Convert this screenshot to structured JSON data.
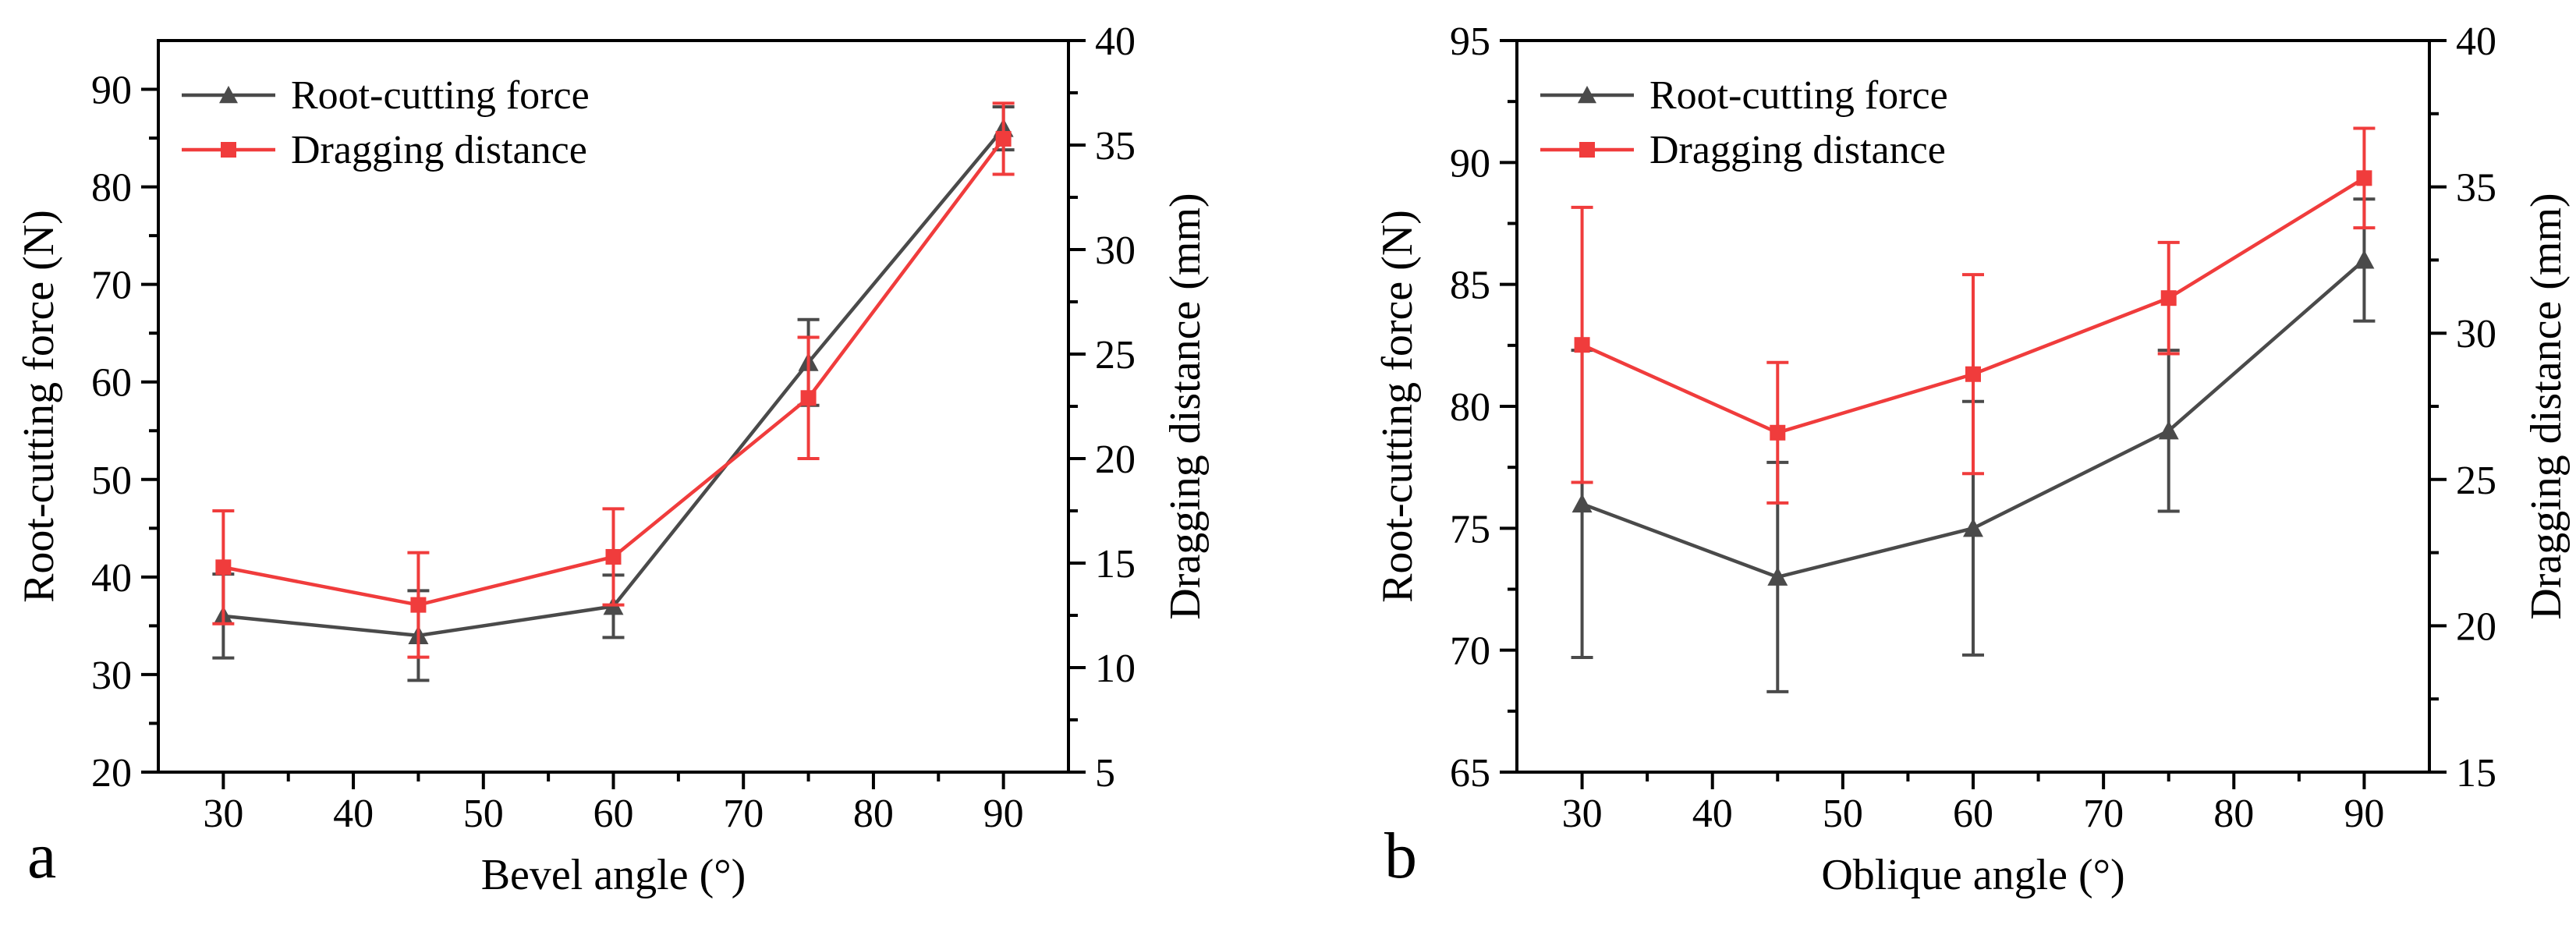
{
  "chart_data": [
    {
      "type": "line",
      "panel_label": "a",
      "xlabel": "Bevel angle (°)",
      "ylabel_left": "Root-cutting force (N)",
      "ylabel_right": "Dragging distance (mm)",
      "xlim": [
        25,
        95
      ],
      "ylim_left": [
        20,
        95
      ],
      "ylim_right": [
        5,
        40
      ],
      "xticks": [
        30,
        40,
        50,
        60,
        70,
        80,
        90
      ],
      "yticks_left": [
        20,
        30,
        40,
        50,
        60,
        70,
        80,
        90
      ],
      "yticks_right": [
        5,
        10,
        15,
        20,
        25,
        30,
        35,
        40
      ],
      "series": [
        {
          "name": "Root-cutting force",
          "axis": "left",
          "color": "#4a4a4a",
          "marker": "triangle",
          "x": [
            30,
            45,
            60,
            75,
            90
          ],
          "y": [
            36,
            34,
            37,
            62,
            86
          ],
          "error": [
            4.3,
            4.6,
            3.2,
            4.4,
            2.2
          ]
        },
        {
          "name": "Dragging distance",
          "axis": "right",
          "color": "#f03c3c",
          "marker": "square",
          "x": [
            30,
            45,
            60,
            75,
            90
          ],
          "y": [
            14.8,
            13.0,
            15.3,
            22.9,
            35.3
          ],
          "error": [
            2.7,
            2.5,
            2.3,
            2.9,
            1.7
          ]
        }
      ]
    },
    {
      "type": "line",
      "panel_label": "b",
      "xlabel": "Oblique angle (°)",
      "ylabel_left": "Root-cutting force (N)",
      "ylabel_right": "Dragging distance (mm)",
      "xlim": [
        25,
        95
      ],
      "ylim_left": [
        65,
        95
      ],
      "ylim_right": [
        15,
        40
      ],
      "xticks": [
        30,
        40,
        50,
        60,
        70,
        80,
        90
      ],
      "yticks_left": [
        65,
        70,
        75,
        80,
        85,
        90,
        95
      ],
      "yticks_right": [
        15,
        20,
        25,
        30,
        35,
        40
      ],
      "series": [
        {
          "name": "Root-cutting force",
          "axis": "left",
          "color": "#4a4a4a",
          "marker": "triangle",
          "x": [
            30,
            45,
            60,
            75,
            90
          ],
          "y": [
            76,
            73,
            75,
            79,
            86
          ],
          "error": [
            6.3,
            4.7,
            5.2,
            3.3,
            2.5
          ]
        },
        {
          "name": "Dragging distance",
          "axis": "right",
          "color": "#f03c3c",
          "marker": "square",
          "x": [
            30,
            45,
            60,
            75,
            90
          ],
          "y": [
            29.6,
            26.6,
            28.6,
            31.2,
            35.3
          ],
          "error": [
            4.7,
            2.4,
            3.4,
            1.9,
            1.7
          ]
        }
      ]
    }
  ]
}
